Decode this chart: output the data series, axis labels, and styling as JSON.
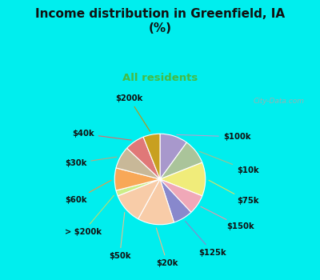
{
  "title": "Income distribution in Greenfield, IA\n(%)",
  "subtitle": "All residents",
  "title_color": "#111111",
  "subtitle_color": "#44bb44",
  "bg_cyan": "#00eeee",
  "bg_chart": "#d8f0e8",
  "labels": [
    "$100k",
    "$10k",
    "$75k",
    "$150k",
    "$125k",
    "$20k",
    "$50k",
    "> $200k",
    "$60k",
    "$30k",
    "$40k",
    "$200k"
  ],
  "values": [
    10,
    9,
    12,
    7,
    7,
    13,
    11,
    2,
    8,
    8,
    7,
    6
  ],
  "colors": [
    "#a898cc",
    "#aac49a",
    "#f0ec7a",
    "#f0a8b8",
    "#8888cc",
    "#f8cca8",
    "#f8cca8",
    "#ccee88",
    "#f8a858",
    "#c8b898",
    "#e07878",
    "#c8a020"
  ],
  "figsize": [
    4.0,
    3.5
  ],
  "dpi": 100
}
